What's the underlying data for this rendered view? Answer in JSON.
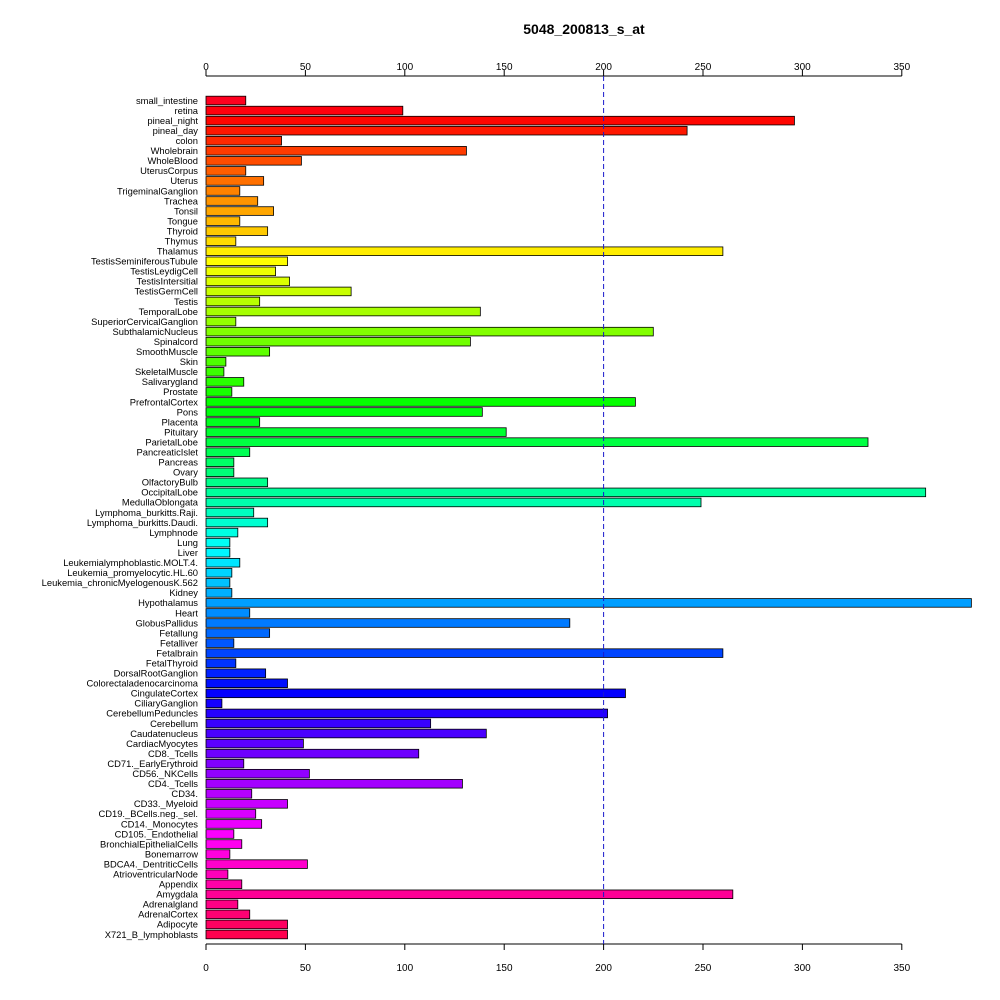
{
  "chart_data": {
    "type": "bar",
    "orientation": "horizontal",
    "title": "5048_200813_s_at",
    "xlabel": "",
    "ylabel": "",
    "xlim": [
      0,
      390
    ],
    "xticks": [
      0,
      50,
      100,
      150,
      200,
      250,
      300,
      350
    ],
    "reference_line": {
      "value": 200,
      "color": "#1a1acc",
      "style": "dashed"
    },
    "color_scheme": "rainbow",
    "categories": [
      "small_intestine",
      "retina",
      "pineal_night",
      "pineal_day",
      "colon",
      "Wholebrain",
      "WholeBlood",
      "UterusCorpus",
      "Uterus",
      "TrigeminalGanglion",
      "Trachea",
      "Tonsil",
      "Tongue",
      "Thyroid",
      "Thymus",
      "Thalamus",
      "TestisSeminiferousTubule",
      "TestisLeydigCell",
      "TestisIntersitial",
      "TestisGermCell",
      "Testis",
      "TemporalLobe",
      "SuperiorCervicalGanglion",
      "SubthalamicNucleus",
      "Spinalcord",
      "SmoothMuscle",
      "Skin",
      "SkeletalMuscle",
      "Salivarygland",
      "Prostate",
      "PrefrontalCortex",
      "Pons",
      "Placenta",
      "Pituitary",
      "ParietalLobe",
      "PancreaticIslet",
      "Pancreas",
      "Ovary",
      "OlfactoryBulb",
      "OccipitalLobe",
      "MedullaOblongata",
      "Lymphoma_burkitts.Raji.",
      "Lymphoma_burkitts.Daudi.",
      "Lymphnode",
      "Lung",
      "Liver",
      "Leukemialymphoblastic.MOLT.4.",
      "Leukemia_promyelocytic.HL.60",
      "Leukemia_chronicMyelogenousK.562",
      "Kidney",
      "Hypothalamus",
      "Heart",
      "GlobusPallidus",
      "Fetallung",
      "Fetalliver",
      "Fetalbrain",
      "FetalThyroid",
      "DorsalRootGanglion",
      "Colorectaladenocarcinoma",
      "CingulateCortex",
      "CiliaryGanglion",
      "CerebellumPeduncles",
      "Cerebellum",
      "Caudatenucleus",
      "CardiacMyocytes",
      "CD8._Tcells",
      "CD71._EarlyErythroid",
      "CD56._NKCells",
      "CD4._Tcells",
      "CD34.",
      "CD33._Myeloid",
      "CD19._BCells.neg._sel.",
      "CD14._Monocytes",
      "CD105._Endothelial",
      "BronchialEpithelialCells",
      "Bonemarrow",
      "BDCA4._DentriticCells",
      "AtrioventricularNode",
      "Appendix",
      "Amygdala",
      "Adrenalgland",
      "AdrenalCortex",
      "Adipocyte",
      "X721_B_lymphoblasts"
    ],
    "values": [
      20,
      99,
      296,
      242,
      38,
      131,
      48,
      20,
      29,
      17,
      26,
      34,
      17,
      31,
      15,
      260,
      41,
      35,
      42,
      73,
      27,
      138,
      15,
      225,
      133,
      32,
      10,
      9,
      19,
      13,
      216,
      139,
      27,
      151,
      333,
      22,
      14,
      14,
      31,
      362,
      249,
      24,
      31,
      16,
      12,
      12,
      17,
      13,
      12,
      13,
      385,
      22,
      183,
      32,
      14,
      260,
      15,
      30,
      41,
      211,
      8,
      202,
      113,
      141,
      49,
      107,
      19,
      52,
      129,
      23,
      41,
      25,
      28,
      14,
      18,
      12,
      51,
      11,
      18,
      265,
      16,
      22,
      41,
      41
    ]
  }
}
